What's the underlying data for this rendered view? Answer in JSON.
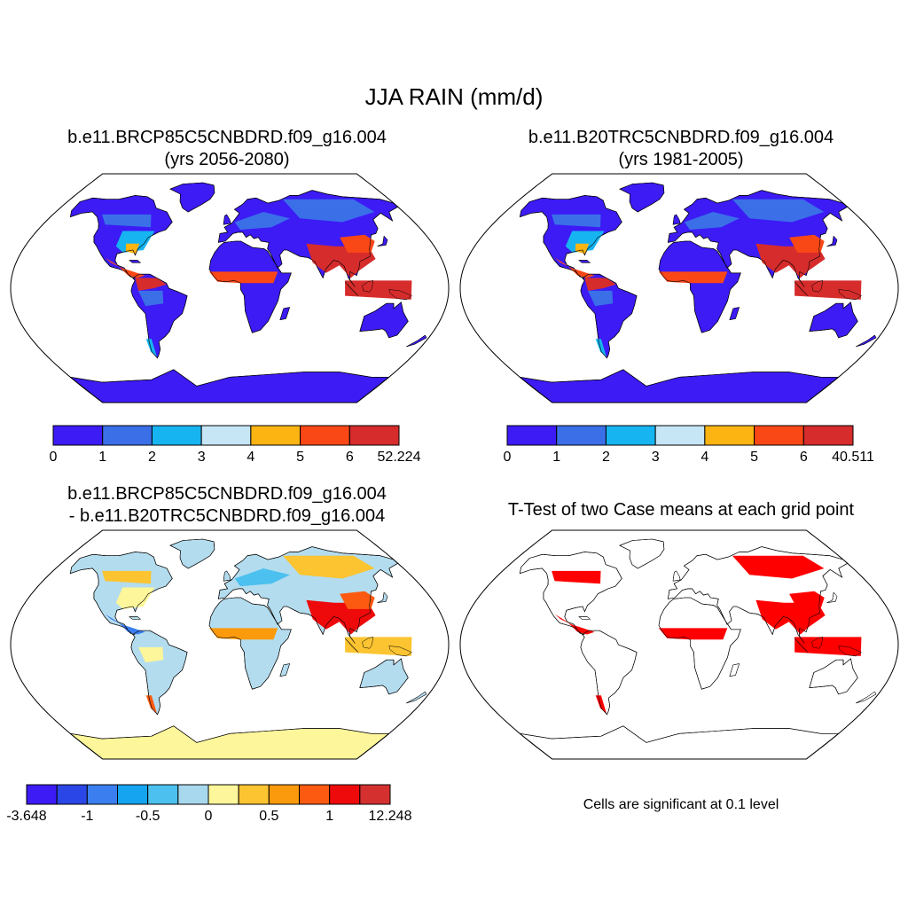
{
  "title": "JJA RAIN (mm/d)",
  "panels": [
    {
      "title_line1": "b.e11.BRCP85C5CNBDRD.f09_g16.004",
      "title_line2": "(yrs 2056-2080)",
      "colorbar": {
        "tick_labels": [
          "0",
          "1",
          "2",
          "3",
          "4",
          "5",
          "6",
          "52.224"
        ],
        "colors": [
          "#3c1bf5",
          "#3a6fe8",
          "#16b4f0",
          "#c6e6f6",
          "#fbb412",
          "#fa4716",
          "#d62c2c"
        ]
      }
    },
    {
      "title_line1": "b.e11.B20TRC5CNBDRD.f09_g16.004",
      "title_line2": "(yrs 1981-2005)",
      "colorbar": {
        "tick_labels": [
          "0",
          "1",
          "2",
          "3",
          "4",
          "5",
          "6",
          "40.511"
        ],
        "colors": [
          "#3c1bf5",
          "#3a6fe8",
          "#16b4f0",
          "#c6e6f6",
          "#fbb412",
          "#fa4716",
          "#d62c2c"
        ]
      }
    },
    {
      "title_line1": "b.e11.BRCP85C5CNBDRD.f09_g16.004",
      "title_line2": "- b.e11.B20TRC5CNBDRD.f09_g16.004",
      "colorbar": {
        "tick_labels": [
          "-3.648",
          "-1",
          "-0.5",
          "0",
          "0.5",
          "1",
          "12.248"
        ],
        "colors": [
          "#3c1bf5",
          "#2a46e6",
          "#3a7ef0",
          "#14a4f0",
          "#4cc0ee",
          "#a8d8ee",
          "#fdf69a",
          "#fcc430",
          "#fb9a0c",
          "#fb5a10",
          "#ee0a0a",
          "#d43030"
        ]
      }
    },
    {
      "title": "T-Test of two Case means at each grid point",
      "note": "Cells are significant at 0.1 level",
      "significant_color": "#ff0000"
    }
  ]
}
